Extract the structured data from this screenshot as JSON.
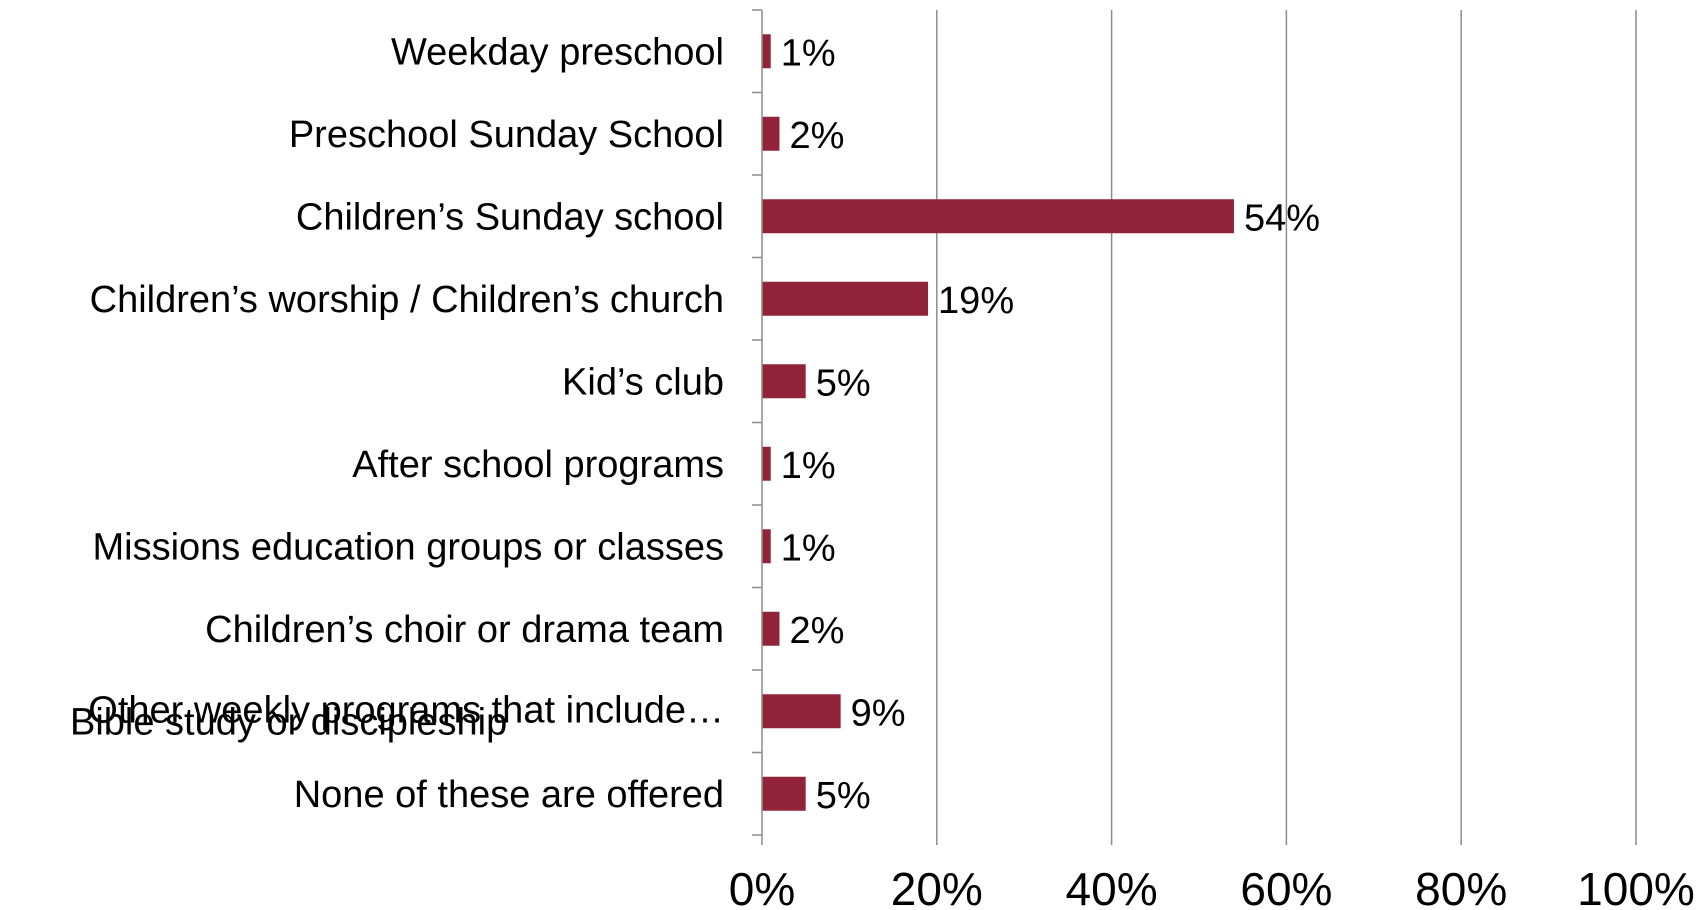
{
  "chart_data": {
    "type": "bar",
    "orientation": "horizontal",
    "categories": [
      "Weekday preschool",
      "Preschool Sunday School",
      "Children’s Sunday school",
      "Children’s worship / Children’s church",
      "Kid’s club",
      "After school programs",
      "Missions education groups or classes",
      "Children’s choir or drama team",
      "Other weekly programs that include Bible study or discipleship",
      "None of these are offered"
    ],
    "category_display": [
      [
        "Weekday preschool"
      ],
      [
        "Preschool Sunday School"
      ],
      [
        "Children’s Sunday school"
      ],
      [
        "Children’s worship / Children’s church"
      ],
      [
        "Kid’s club"
      ],
      [
        "After school programs"
      ],
      [
        "Missions education groups or classes"
      ],
      [
        "Children’s choir or drama team"
      ],
      [
        "Other weekly programs that include…",
        "Bible study or discipleship"
      ],
      [
        "None of these are offered"
      ]
    ],
    "values": [
      1,
      2,
      54,
      19,
      5,
      1,
      1,
      2,
      9,
      5
    ],
    "value_labels": [
      "1%",
      "2%",
      "54%",
      "19%",
      "5%",
      "1%",
      "1%",
      "2%",
      "9%",
      "5%"
    ],
    "xlim": [
      0,
      100
    ],
    "x_ticks": [
      0,
      20,
      40,
      60,
      80,
      100
    ],
    "x_tick_labels": [
      "0%",
      "20%",
      "40%",
      "60%",
      "80%",
      "100%"
    ],
    "grid": true,
    "bar_color": "#92243A",
    "grid_color": "#8C8C8C",
    "axis_color": "#8C8C8C"
  }
}
